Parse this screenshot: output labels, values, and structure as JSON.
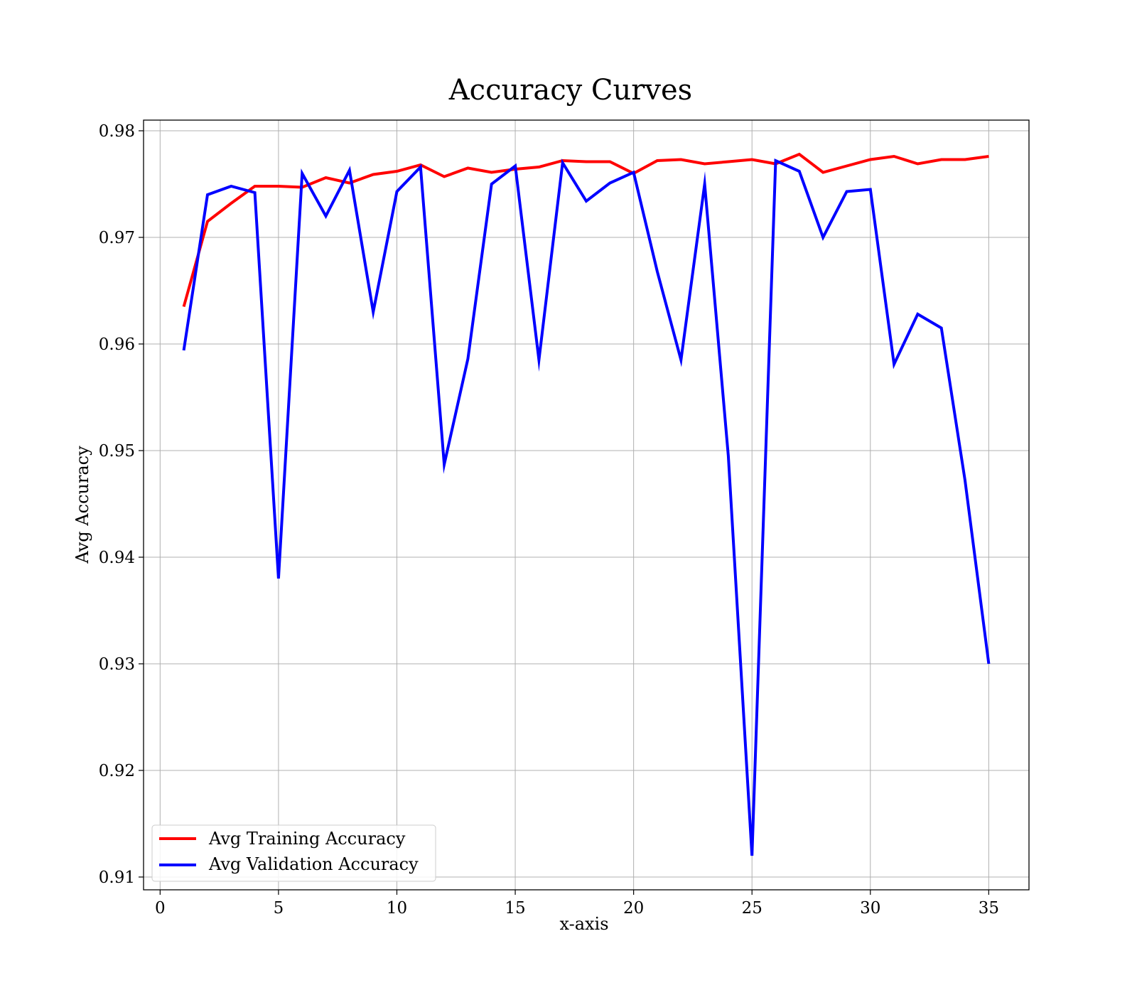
{
  "chart_data": {
    "type": "line",
    "title": "Accuracy Curves",
    "xlabel": "x-axis",
    "ylabel": "Avg Accuracy",
    "xlim": [
      -0.7,
      36.7
    ],
    "ylim": [
      0.9088,
      0.981
    ],
    "xticks": [
      0,
      5,
      10,
      15,
      20,
      25,
      30,
      35
    ],
    "yticks": [
      0.91,
      0.92,
      0.93,
      0.94,
      0.95,
      0.96,
      0.97,
      0.98
    ],
    "xtick_labels": [
      "0",
      "5",
      "10",
      "15",
      "20",
      "25",
      "30",
      "35"
    ],
    "ytick_labels": [
      "0.91",
      "0.92",
      "0.93",
      "0.94",
      "0.95",
      "0.96",
      "0.97",
      "0.98"
    ],
    "grid": true,
    "legend_position": "lower-left",
    "x": [
      1,
      2,
      3,
      4,
      5,
      6,
      7,
      8,
      9,
      10,
      11,
      12,
      13,
      14,
      15,
      16,
      17,
      18,
      19,
      20,
      21,
      22,
      23,
      24,
      25,
      26,
      27,
      28,
      29,
      30,
      31,
      32,
      33,
      34,
      35
    ],
    "series": [
      {
        "name": "Avg Training Accuracy",
        "color": "#ff0000",
        "values": [
          0.9635,
          0.9715,
          0.9732,
          0.9748,
          0.9748,
          0.9747,
          0.9756,
          0.9751,
          0.9759,
          0.9762,
          0.9768,
          0.9757,
          0.9765,
          0.9761,
          0.9764,
          0.9766,
          0.9772,
          0.9771,
          0.9771,
          0.976,
          0.9772,
          0.9773,
          0.9769,
          0.9771,
          0.9773,
          0.9769,
          0.9778,
          0.9761,
          0.9767,
          0.9773,
          0.9776,
          0.9769,
          0.9773,
          0.9773,
          0.9776
        ]
      },
      {
        "name": "Avg Validation Accuracy",
        "color": "#0000ff",
        "values": [
          0.9594,
          0.974,
          0.9748,
          0.9742,
          0.938,
          0.976,
          0.972,
          0.9763,
          0.963,
          0.9743,
          0.9766,
          0.9487,
          0.9586,
          0.975,
          0.9767,
          0.9585,
          0.977,
          0.9734,
          0.9751,
          0.9761,
          0.9668,
          0.9585,
          0.975,
          0.9495,
          0.912,
          0.9772,
          0.9762,
          0.97,
          0.9743,
          0.9745,
          0.9581,
          0.9628,
          0.9615,
          0.9472,
          0.93
        ]
      }
    ]
  }
}
